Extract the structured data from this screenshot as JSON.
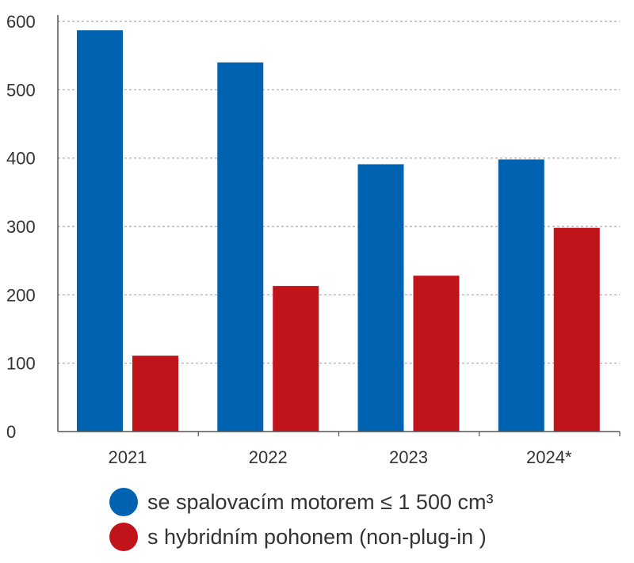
{
  "chart_data": {
    "type": "bar",
    "categories": [
      "2021",
      "2022",
      "2023",
      "2024*"
    ],
    "series": [
      {
        "name": "se spalovacím motorem  ≤ 1 500 cm³",
        "color": "#0063b1",
        "values": [
          587,
          540,
          391,
          398
        ]
      },
      {
        "name": "s hybridním pohonem (non-plug-in )",
        "color": "#c0141a",
        "values": [
          111,
          213,
          228,
          298
        ]
      }
    ],
    "title": "",
    "xlabel": "",
    "ylabel": "",
    "ylim": [
      0,
      600
    ],
    "yticks": [
      0,
      100,
      200,
      300,
      400,
      500,
      600
    ],
    "grid": true,
    "legend_placement": "bottom"
  }
}
